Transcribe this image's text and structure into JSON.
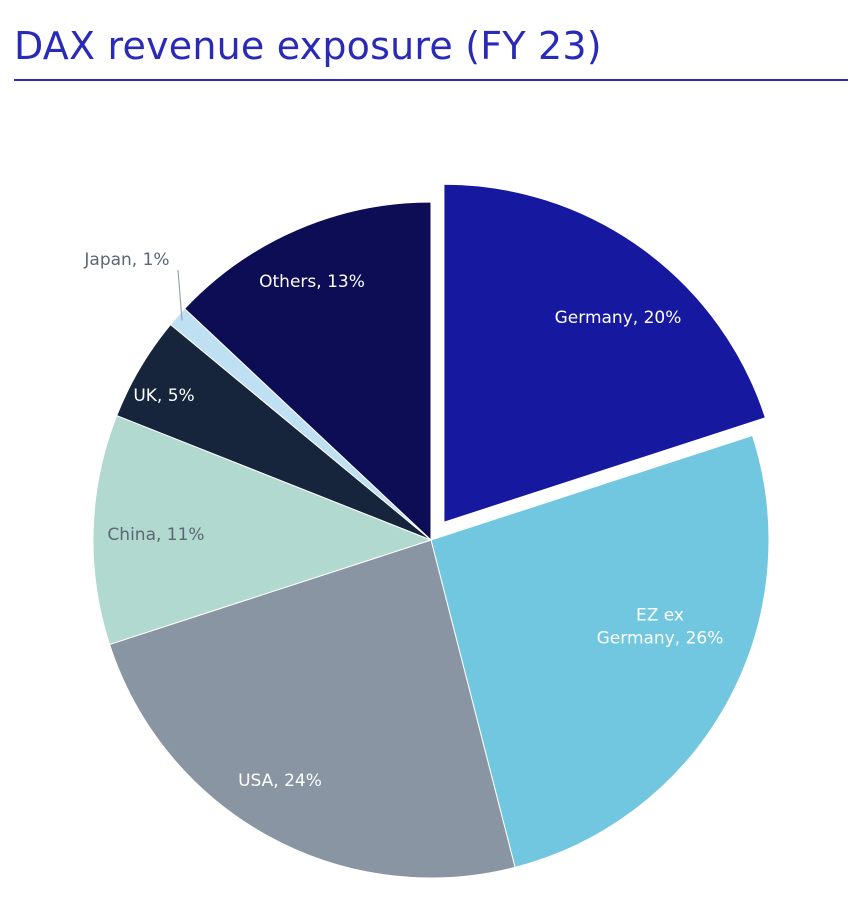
{
  "title": "DAX revenue exposure (FY 23)",
  "colors": {
    "title": "#2a2ab8",
    "rule": "#2a2ab8"
  },
  "chart_data": {
    "type": "pie",
    "title": "DAX revenue exposure (FY 23)",
    "start_angle_deg": 0,
    "direction": "clockwise",
    "exploded_slice": "Germany",
    "slices": [
      {
        "label": "Germany",
        "value": 20,
        "text": "Germany, 20%",
        "color": "#1718a0",
        "text_color": "#ffffff"
      },
      {
        "label": "EZ ex Germany",
        "value": 26,
        "text": "EZ ex\nGermany, 26%",
        "color": "#70c7df",
        "text_color": "#ffffff"
      },
      {
        "label": "USA",
        "value": 24,
        "text": "USA, 24%",
        "color": "#8a95a3",
        "text_color": "#ffffff"
      },
      {
        "label": "China",
        "value": 11,
        "text": "China, 11%",
        "color": "#b1d9d0",
        "text_color": "#5b6775"
      },
      {
        "label": "UK",
        "value": 5,
        "text": "UK, 5%",
        "color": "#16243c",
        "text_color": "#ffffff"
      },
      {
        "label": "Japan",
        "value": 1,
        "text": "Japan, 1%",
        "color": "#bfe0f2",
        "text_color": "#5b6775",
        "label_outside": true
      },
      {
        "label": "Others",
        "value": 13,
        "text": "Others, 13%",
        "color": "#0c0d55",
        "text_color": "#ffffff"
      }
    ]
  }
}
